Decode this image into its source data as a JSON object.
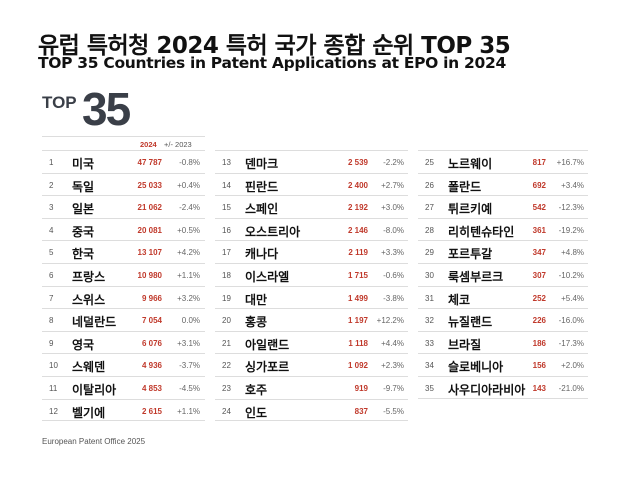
{
  "title": "유럽 특허청 2024 특허 국가 종합 순위 TOP 35",
  "subtitle": "TOP 35 Countries in Patent Applications at EPO in 2024",
  "logo": {
    "top": "TOP",
    "num": "35"
  },
  "header": {
    "year": "2024",
    "change": "+/- 2023"
  },
  "colors": {
    "value": "#c0392b"
  },
  "columns": [
    [
      [
        "1",
        "미국",
        "47 787",
        "-0.8%"
      ],
      [
        "2",
        "독일",
        "25 033",
        "+0.4%"
      ],
      [
        "3",
        "일본",
        "21 062",
        "-2.4%"
      ],
      [
        "4",
        "중국",
        "20 081",
        "+0.5%"
      ],
      [
        "5",
        "한국",
        "13 107",
        "+4.2%"
      ],
      [
        "6",
        "프랑스",
        "10 980",
        "+1.1%"
      ],
      [
        "7",
        "스위스",
        "9 966",
        "+3.2%"
      ],
      [
        "8",
        "네덜란드",
        "7 054",
        "0.0%"
      ],
      [
        "9",
        "영국",
        "6 076",
        "+3.1%"
      ],
      [
        "10",
        "스웨덴",
        "4 936",
        "-3.7%"
      ],
      [
        "11",
        "이탈리아",
        "4 853",
        "-4.5%"
      ],
      [
        "12",
        "벨기에",
        "2 615",
        "+1.1%"
      ]
    ],
    [
      [
        "13",
        "덴마크",
        "2 539",
        "-2.2%"
      ],
      [
        "14",
        "핀란드",
        "2 400",
        "+2.7%"
      ],
      [
        "15",
        "스페인",
        "2 192",
        "+3.0%"
      ],
      [
        "16",
        "오스트리아",
        "2 146",
        "-8.0%"
      ],
      [
        "17",
        "캐나다",
        "2 119",
        "+3.3%"
      ],
      [
        "18",
        "이스라엘",
        "1 715",
        "-0.6%"
      ],
      [
        "19",
        "대만",
        "1 499",
        "-3.8%"
      ],
      [
        "20",
        "홍콩",
        "1 197",
        "+12.2%"
      ],
      [
        "21",
        "아일랜드",
        "1 118",
        "+4.4%"
      ],
      [
        "22",
        "싱가포르",
        "1 092",
        "+2.3%"
      ],
      [
        "23",
        "호주",
        "919",
        "-9.7%"
      ],
      [
        "24",
        "인도",
        "837",
        "-5.5%"
      ]
    ],
    [
      [
        "25",
        "노르웨이",
        "817",
        "+16.7%"
      ],
      [
        "26",
        "폴란드",
        "692",
        "+3.4%"
      ],
      [
        "27",
        "튀르키예",
        "542",
        "-12.3%"
      ],
      [
        "28",
        "리히텐슈타인",
        "361",
        "-19.2%"
      ],
      [
        "29",
        "포르투갈",
        "347",
        "+4.8%"
      ],
      [
        "30",
        "룩셈부르크",
        "307",
        "-10.2%"
      ],
      [
        "31",
        "체코",
        "252",
        "+5.4%"
      ],
      [
        "32",
        "뉴질랜드",
        "226",
        "-16.0%"
      ],
      [
        "33",
        "브라질",
        "186",
        "-17.3%"
      ],
      [
        "34",
        "슬로베니아",
        "156",
        "+2.0%"
      ],
      [
        "35",
        "사우디아라비아",
        "143",
        "-21.0%"
      ]
    ]
  ],
  "footer": "European Patent Office 2025"
}
